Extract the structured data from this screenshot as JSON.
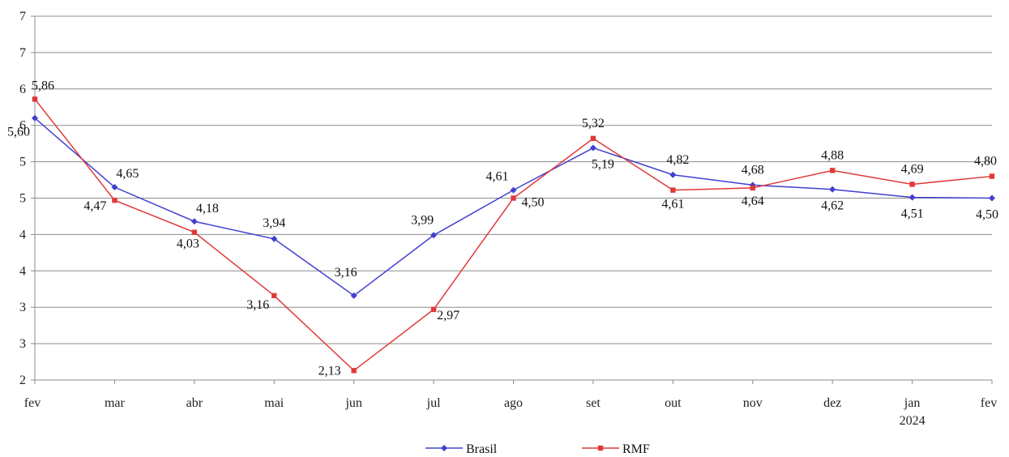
{
  "chart_data": {
    "type": "line",
    "categories": [
      "fev",
      "mar",
      "abr",
      "mai",
      "jun",
      "jul",
      "ago",
      "set",
      "out",
      "nov",
      "dez",
      "jan",
      "fev"
    ],
    "category_sublabels": [
      "",
      "",
      "",
      "",
      "",
      "",
      "",
      "",
      "",
      "",
      "",
      "2024",
      ""
    ],
    "y_tick_labels": [
      "2",
      "3",
      "3",
      "4",
      "4",
      "5",
      "5",
      "6",
      "6",
      "7",
      "7"
    ],
    "ylim": [
      2,
      7
    ],
    "grid": true,
    "legend_position": "bottom",
    "series": [
      {
        "name": "Brasil",
        "color": "#4040d0",
        "marker": "diamond",
        "values": [
          5.6,
          4.65,
          4.18,
          3.94,
          3.16,
          3.99,
          4.61,
          5.19,
          4.82,
          4.68,
          4.62,
          4.51,
          4.5
        ],
        "labels": [
          "5,60",
          "4,65",
          "4,18",
          "3,94",
          "3,16",
          "3,99",
          "4,61",
          "5,19",
          "4,82",
          "4,68",
          "4,62",
          "4,51",
          "4,50"
        ]
      },
      {
        "name": "RMF",
        "color": "#e03838",
        "marker": "square",
        "values": [
          5.86,
          4.47,
          4.03,
          3.16,
          2.13,
          2.97,
          4.5,
          5.32,
          4.61,
          4.64,
          4.88,
          4.69,
          4.8
        ],
        "labels": [
          "5,86",
          "4,47",
          "4,03",
          "3,16",
          "2,13",
          "2,97",
          "4,50",
          "5,32",
          "4,61",
          "4,64",
          "4,88",
          "4,69",
          "4,80"
        ]
      }
    ]
  }
}
